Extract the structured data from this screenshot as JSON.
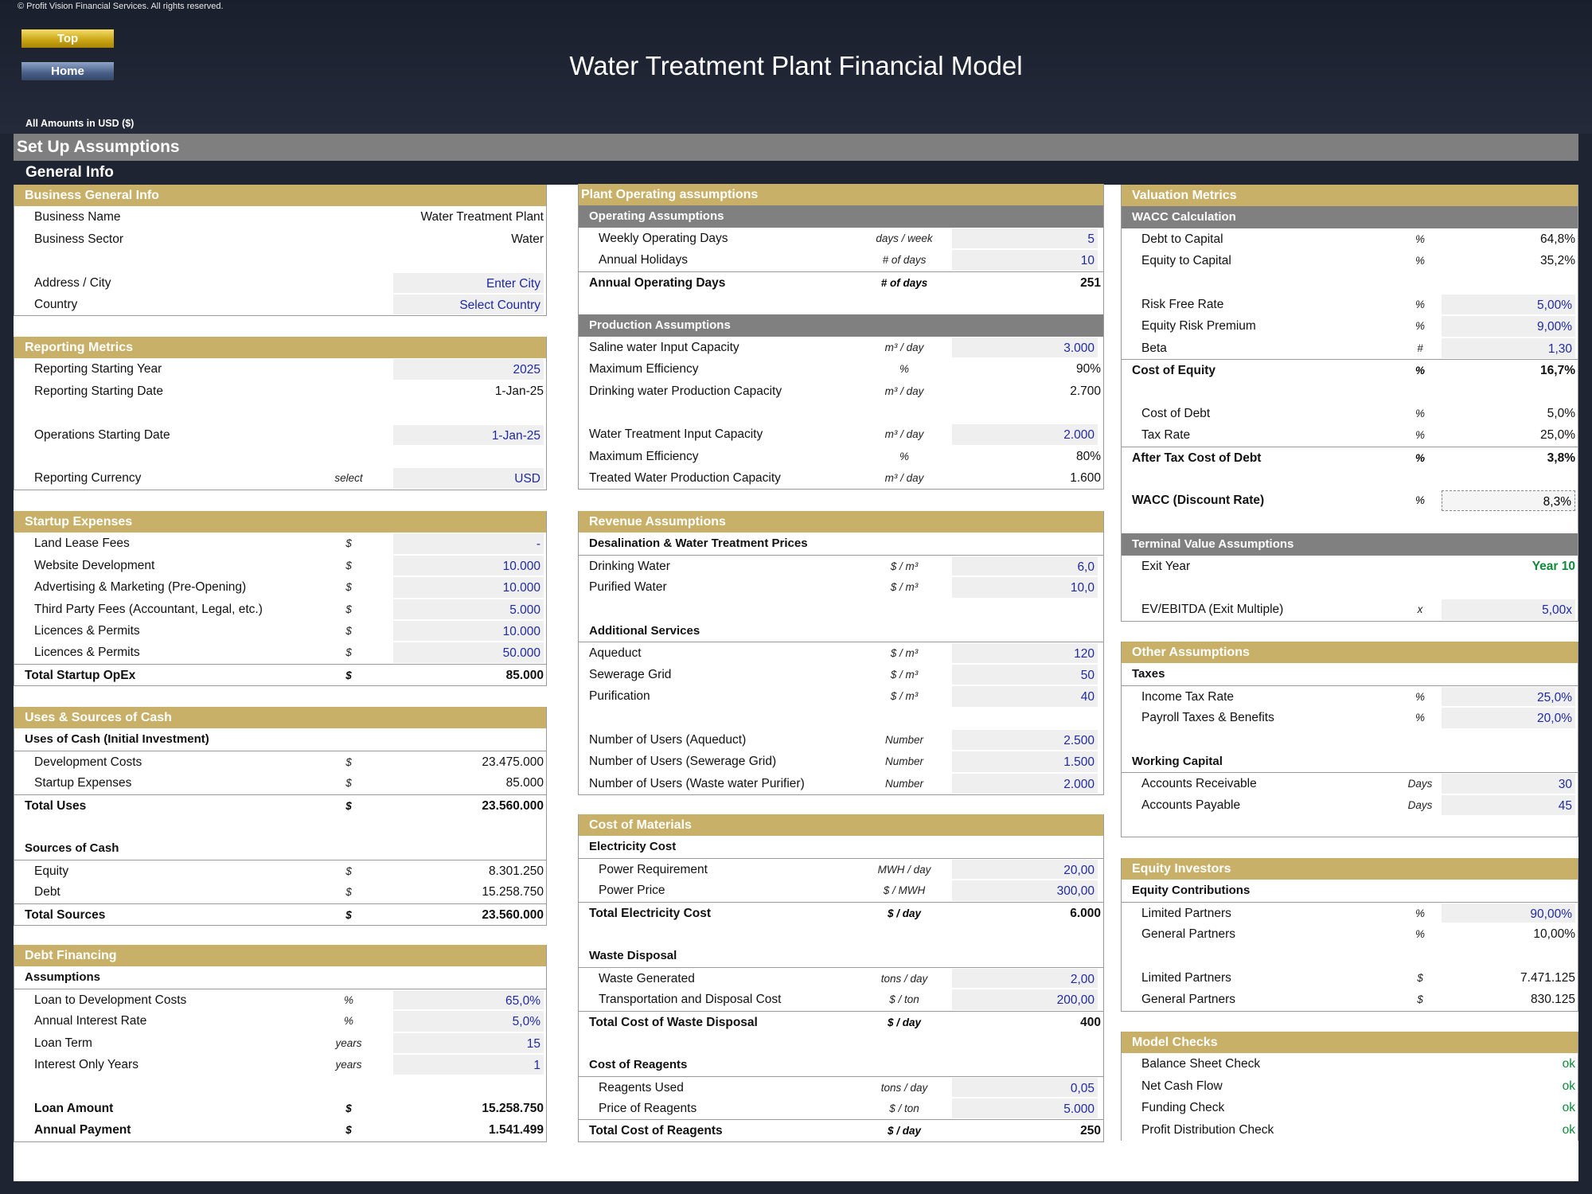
{
  "copyright": "© Profit Vision Financial Services. All rights reserved.",
  "buttons": {
    "top": "Top",
    "home": "Home"
  },
  "title": "Water Treatment Plant Financial Model",
  "amounts_note": "All Amounts in  USD ($)",
  "setup_title": "Set Up Assumptions",
  "general_info": "General Info",
  "business": {
    "header": "Business General Info",
    "name_label": "Business Name",
    "name_value": "Water Treatment Plant",
    "sector_label": "Business Sector",
    "sector_value": "Water",
    "city_label": "Address / City",
    "city_value": "Enter City",
    "country_label": "Country",
    "country_value": "Select Country"
  },
  "reporting": {
    "header": "Reporting Metrics",
    "year_label": "Reporting Starting Year",
    "year_value": "2025",
    "date_label": "Reporting Starting Date",
    "date_value": "1-Jan-25",
    "ops_label": "Operations Starting Date",
    "ops_value": "1-Jan-25",
    "currency_label": "Reporting Currency",
    "currency_unit": "select",
    "currency_value": "USD"
  },
  "startup": {
    "header": "Startup Expenses",
    "items": [
      {
        "label": "Land Lease Fees",
        "unit": "$",
        "value": "-"
      },
      {
        "label": "Website Development",
        "unit": "$",
        "value": "10.000"
      },
      {
        "label": "Advertising & Marketing (Pre-Opening)",
        "unit": "$",
        "value": "10.000"
      },
      {
        "label": "Third Party Fees (Accountant, Legal, etc.)",
        "unit": "$",
        "value": "5.000"
      },
      {
        "label": "Licences & Permits",
        "unit": "$",
        "value": "10.000"
      },
      {
        "label": "Licences & Permits",
        "unit": "$",
        "value": "50.000"
      }
    ],
    "total_label": "Total Startup OpEx",
    "total_unit": "$",
    "total_value": "85.000"
  },
  "uses_sources": {
    "header": "Uses & Sources of Cash",
    "uses_head": "Uses of Cash (Initial Investment)",
    "uses": [
      {
        "label": "Development Costs",
        "unit": "$",
        "value": "23.475.000"
      },
      {
        "label": "Startup Expenses",
        "unit": "$",
        "value": "85.000"
      }
    ],
    "total_uses_label": "Total Uses",
    "total_uses_unit": "$",
    "total_uses_value": "23.560.000",
    "sources_head": "Sources of Cash",
    "sources": [
      {
        "label": "Equity",
        "unit": "$",
        "value": "8.301.250"
      },
      {
        "label": "Debt",
        "unit": "$",
        "value": "15.258.750"
      }
    ],
    "total_sources_label": "Total Sources",
    "total_sources_unit": "$",
    "total_sources_value": "23.560.000"
  },
  "debt": {
    "header": "Debt Financing",
    "assumptions_head": "Assumptions",
    "items": [
      {
        "label": "Loan to Development Costs",
        "unit": "%",
        "value": "65,0%"
      },
      {
        "label": "Annual Interest Rate",
        "unit": "%",
        "value": "5,0%"
      },
      {
        "label": "Loan Term",
        "unit": "years",
        "value": "15"
      },
      {
        "label": "Interest Only Years",
        "unit": "years",
        "value": "1"
      }
    ],
    "loan_amount_label": "Loan Amount",
    "loan_amount_unit": "$",
    "loan_amount_value": "15.258.750",
    "payment_label": "Annual Payment",
    "payment_unit": "$",
    "payment_value": "1.541.499"
  },
  "plant": {
    "header": "Plant Operating assumptions",
    "op_head": "Operating Assumptions",
    "weekly_label": "Weekly Operating Days",
    "weekly_unit": "days / week",
    "weekly_value": "5",
    "holidays_label": "Annual Holidays",
    "holidays_unit": "# of days",
    "holidays_value": "10",
    "annual_label": "Annual Operating Days",
    "annual_unit": "# of days",
    "annual_value": "251",
    "prod_head": "Production Assumptions",
    "saline_label": "Saline water Input Capacity",
    "saline_unit": "m³ / day",
    "saline_value": "3.000",
    "eff1_label": "Maximum Efficiency",
    "eff1_unit": "%",
    "eff1_value": "90%",
    "drink_cap_label": "Drinking water Production Capacity",
    "drink_cap_unit": "m³ / day",
    "drink_cap_value": "2.700",
    "wt_input_label": "Water Treatment Input Capacity",
    "wt_input_unit": "m³ / day",
    "wt_input_value": "2.000",
    "eff2_label": "Maximum Efficiency",
    "eff2_unit": "%",
    "eff2_value": "80%",
    "treated_label": "Treated Water Production Capacity",
    "treated_unit": "m³ / day",
    "treated_value": "1.600"
  },
  "revenue": {
    "header": "Revenue Assumptions",
    "prices_head": "Desalination & Water Treatment Prices",
    "drinking_label": "Drinking Water",
    "drinking_unit": "$ / m³",
    "drinking_value": "6,0",
    "purified_label": "Purified Water",
    "purified_unit": "$ / m³",
    "purified_value": "10,0",
    "add_head": "Additional Services",
    "aqueduct_label": "Aqueduct",
    "aqueduct_unit": "$ / m³",
    "aqueduct_value": "120",
    "sewerage_label": "Sewerage Grid",
    "sewerage_unit": "$ / m³",
    "sewerage_value": "50",
    "purification_label": "Purification",
    "purification_unit": "$ / m³",
    "purification_value": "40",
    "users_aq_label": "Number of Users (Aqueduct)",
    "users_aq_unit": "Number",
    "users_aq_value": "2.500",
    "users_sg_label": "Number of Users (Sewerage Grid)",
    "users_sg_unit": "Number",
    "users_sg_value": "1.500",
    "users_wp_label": "Number of Users (Waste water Purifier)",
    "users_wp_unit": "Number",
    "users_wp_value": "2.000"
  },
  "materials": {
    "header": "Cost of Materials",
    "elec_head": "Electricity Cost",
    "power_req_label": "Power Requirement",
    "power_req_unit": "MWH / day",
    "power_req_value": "20,00",
    "power_price_label": "Power Price",
    "power_price_unit": "$ / MWH",
    "power_price_value": "300,00",
    "total_elec_label": "Total Electricity Cost",
    "total_elec_unit": "$ / day",
    "total_elec_value": "6.000",
    "waste_head": "Waste Disposal",
    "waste_gen_label": "Waste Generated",
    "waste_gen_unit": "tons / day",
    "waste_gen_value": "2,00",
    "transport_label": "Transportation and Disposal Cost",
    "transport_unit": "$ / ton",
    "transport_value": "200,00",
    "total_waste_label": "Total Cost of Waste Disposal",
    "total_waste_unit": "$ / day",
    "total_waste_value": "400",
    "reag_head": "Cost of Reagents",
    "reag_used_label": "Reagents Used",
    "reag_used_unit": "tons / day",
    "reag_used_value": "0,05",
    "reag_price_label": "Price of Reagents",
    "reag_price_unit": "$ / ton",
    "reag_price_value": "5.000",
    "total_reag_label": "Total Cost of Reagents",
    "total_reag_unit": "$ / day",
    "total_reag_value": "250"
  },
  "valuation": {
    "header": "Valuation Metrics",
    "wacc_head": "WACC Calculation",
    "dtc_label": "Debt to Capital",
    "dtc_unit": "%",
    "dtc_value": "64,8%",
    "etc_label": "Equity to Capital",
    "etc_unit": "%",
    "etc_value": "35,2%",
    "rfr_label": "Risk Free Rate",
    "rfr_unit": "%",
    "rfr_value": "5,00%",
    "erp_label": "Equity Risk Premium",
    "erp_unit": "%",
    "erp_value": "9,00%",
    "beta_label": "Beta",
    "beta_unit": "#",
    "beta_value": "1,30",
    "coe_label": "Cost of Equity",
    "coe_unit": "%",
    "coe_value": "16,7%",
    "cod_label": "Cost of Debt",
    "cod_unit": "%",
    "cod_value": "5,0%",
    "tax_label": "Tax Rate",
    "tax_unit": "%",
    "tax_value": "25,0%",
    "atcod_label": "After Tax Cost of Debt",
    "atcod_unit": "%",
    "atcod_value": "3,8%",
    "wacc_label": "WACC (Discount Rate)",
    "wacc_unit": "%",
    "wacc_value": "8,3%",
    "tv_head": "Terminal Value Assumptions",
    "exit_label": "Exit Year",
    "exit_value": "Year 10",
    "evm_label": "EV/EBITDA (Exit Multiple)",
    "evm_unit": "x",
    "evm_value": "5,00x"
  },
  "other": {
    "header": "Other Assumptions",
    "taxes_head": "Taxes",
    "itr_label": "Income Tax Rate",
    "itr_unit": "%",
    "itr_value": "25,0%",
    "ptb_label": "Payroll Taxes & Benefits",
    "ptb_unit": "%",
    "ptb_value": "20,0%",
    "wc_head": "Working Capital",
    "ar_label": "Accounts Receivable",
    "ar_unit": "Days",
    "ar_value": "30",
    "ap_label": "Accounts Payable",
    "ap_unit": "Days",
    "ap_value": "45"
  },
  "equity": {
    "header": "Equity Investors",
    "contrib_head": "Equity Contributions",
    "lp_pct_label": "Limited Partners",
    "lp_pct_unit": "%",
    "lp_pct_value": "90,00%",
    "gp_pct_label": "General Partners",
    "gp_pct_unit": "%",
    "gp_pct_value": "10,00%",
    "lp_amt_label": "Limited Partners",
    "lp_amt_unit": "$",
    "lp_amt_value": "7.471.125",
    "gp_amt_label": "General Partners",
    "gp_amt_unit": "$",
    "gp_amt_value": "830.125"
  },
  "checks": {
    "header": "Model Checks",
    "items": [
      {
        "label": "Balance Sheet Check",
        "value": "ok"
      },
      {
        "label": "Net Cash Flow",
        "value": "ok"
      },
      {
        "label": "Funding Check",
        "value": "ok"
      },
      {
        "label": "Profit Distribution Check",
        "value": "ok"
      }
    ]
  }
}
